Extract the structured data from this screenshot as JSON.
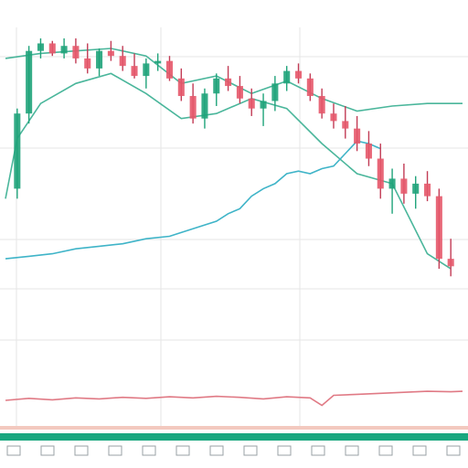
{
  "chart_data": {
    "type": "candlestick",
    "grid": true,
    "legend": "none",
    "colors": {
      "up": "#1fa37a",
      "down": "#e5586a",
      "wick": "#c23b55",
      "envelope": "#2aa98a",
      "line": "#3fb4c8",
      "oscillator": "#e07a85",
      "grid": "#e6e6e6",
      "axis_strip": "#19a77f"
    },
    "price_range": [
      0,
      100
    ],
    "oscillator_range": [
      0,
      100
    ],
    "candles": [
      {
        "x": 1,
        "o": 40,
        "h": 72,
        "l": 36,
        "c": 70
      },
      {
        "x": 2,
        "o": 70,
        "h": 97,
        "l": 66,
        "c": 95
      },
      {
        "x": 3,
        "o": 95,
        "h": 100,
        "l": 92,
        "c": 98
      },
      {
        "x": 4,
        "o": 98,
        "h": 99,
        "l": 93,
        "c": 94
      },
      {
        "x": 5,
        "o": 94,
        "h": 100,
        "l": 92,
        "c": 97
      },
      {
        "x": 6,
        "o": 97,
        "h": 100,
        "l": 90,
        "c": 92
      },
      {
        "x": 7,
        "o": 92,
        "h": 98,
        "l": 86,
        "c": 88
      },
      {
        "x": 8,
        "o": 88,
        "h": 96,
        "l": 85,
        "c": 95
      },
      {
        "x": 9,
        "o": 95,
        "h": 99,
        "l": 91,
        "c": 93
      },
      {
        "x": 10,
        "o": 93,
        "h": 97,
        "l": 87,
        "c": 89
      },
      {
        "x": 11,
        "o": 89,
        "h": 94,
        "l": 84,
        "c": 85
      },
      {
        "x": 12,
        "o": 85,
        "h": 92,
        "l": 80,
        "c": 90
      },
      {
        "x": 13,
        "o": 90,
        "h": 94,
        "l": 87,
        "c": 91
      },
      {
        "x": 14,
        "o": 91,
        "h": 93,
        "l": 83,
        "c": 84
      },
      {
        "x": 15,
        "o": 84,
        "h": 88,
        "l": 75,
        "c": 77
      },
      {
        "x": 16,
        "o": 77,
        "h": 82,
        "l": 66,
        "c": 68
      },
      {
        "x": 17,
        "o": 68,
        "h": 80,
        "l": 64,
        "c": 78
      },
      {
        "x": 18,
        "o": 78,
        "h": 86,
        "l": 73,
        "c": 84
      },
      {
        "x": 19,
        "o": 84,
        "h": 89,
        "l": 79,
        "c": 81
      },
      {
        "x": 20,
        "o": 81,
        "h": 85,
        "l": 74,
        "c": 76
      },
      {
        "x": 21,
        "o": 76,
        "h": 80,
        "l": 69,
        "c": 72
      },
      {
        "x": 22,
        "o": 72,
        "h": 78,
        "l": 65,
        "c": 75
      },
      {
        "x": 23,
        "o": 75,
        "h": 85,
        "l": 71,
        "c": 82
      },
      {
        "x": 24,
        "o": 82,
        "h": 89,
        "l": 79,
        "c": 87
      },
      {
        "x": 25,
        "o": 87,
        "h": 90,
        "l": 82,
        "c": 84
      },
      {
        "x": 26,
        "o": 84,
        "h": 86,
        "l": 75,
        "c": 77
      },
      {
        "x": 27,
        "o": 77,
        "h": 80,
        "l": 68,
        "c": 70
      },
      {
        "x": 28,
        "o": 70,
        "h": 74,
        "l": 64,
        "c": 67
      },
      {
        "x": 29,
        "o": 67,
        "h": 73,
        "l": 60,
        "c": 64
      },
      {
        "x": 30,
        "o": 64,
        "h": 69,
        "l": 55,
        "c": 58
      },
      {
        "x": 31,
        "o": 58,
        "h": 63,
        "l": 49,
        "c": 52
      },
      {
        "x": 32,
        "o": 52,
        "h": 58,
        "l": 36,
        "c": 40
      },
      {
        "x": 33,
        "o": 40,
        "h": 48,
        "l": 30,
        "c": 44
      },
      {
        "x": 34,
        "o": 44,
        "h": 50,
        "l": 34,
        "c": 38
      },
      {
        "x": 35,
        "o": 38,
        "h": 45,
        "l": 32,
        "c": 42
      },
      {
        "x": 36,
        "o": 42,
        "h": 47,
        "l": 35,
        "c": 37
      },
      {
        "x": 37,
        "o": 37,
        "h": 40,
        "l": 8,
        "c": 12
      },
      {
        "x": 38,
        "o": 12,
        "h": 20,
        "l": 5,
        "c": 9
      }
    ],
    "envelope_upper": [
      {
        "x": 0,
        "y": 92
      },
      {
        "x": 3,
        "y": 94
      },
      {
        "x": 6,
        "y": 95
      },
      {
        "x": 9,
        "y": 96
      },
      {
        "x": 12,
        "y": 93
      },
      {
        "x": 15,
        "y": 82
      },
      {
        "x": 18,
        "y": 85
      },
      {
        "x": 21,
        "y": 78
      },
      {
        "x": 24,
        "y": 83
      },
      {
        "x": 27,
        "y": 76
      },
      {
        "x": 30,
        "y": 71
      },
      {
        "x": 33,
        "y": 73
      },
      {
        "x": 36,
        "y": 74
      },
      {
        "x": 39,
        "y": 74
      }
    ],
    "envelope_lower": [
      {
        "x": 0,
        "y": 36
      },
      {
        "x": 1,
        "y": 60
      },
      {
        "x": 3,
        "y": 74
      },
      {
        "x": 6,
        "y": 82
      },
      {
        "x": 9,
        "y": 86
      },
      {
        "x": 12,
        "y": 78
      },
      {
        "x": 15,
        "y": 68
      },
      {
        "x": 18,
        "y": 70
      },
      {
        "x": 21,
        "y": 76
      },
      {
        "x": 24,
        "y": 72
      },
      {
        "x": 27,
        "y": 58
      },
      {
        "x": 30,
        "y": 46
      },
      {
        "x": 33,
        "y": 42
      },
      {
        "x": 36,
        "y": 14
      },
      {
        "x": 38,
        "y": 8
      }
    ],
    "line_series": [
      {
        "x": 0,
        "y": 12
      },
      {
        "x": 2,
        "y": 13
      },
      {
        "x": 4,
        "y": 14
      },
      {
        "x": 6,
        "y": 16
      },
      {
        "x": 8,
        "y": 17
      },
      {
        "x": 10,
        "y": 18
      },
      {
        "x": 12,
        "y": 20
      },
      {
        "x": 14,
        "y": 21
      },
      {
        "x": 16,
        "y": 24
      },
      {
        "x": 18,
        "y": 27
      },
      {
        "x": 19,
        "y": 30
      },
      {
        "x": 20,
        "y": 32
      },
      {
        "x": 21,
        "y": 37
      },
      {
        "x": 22,
        "y": 40
      },
      {
        "x": 23,
        "y": 42
      },
      {
        "x": 24,
        "y": 46
      },
      {
        "x": 25,
        "y": 47
      },
      {
        "x": 26,
        "y": 46
      },
      {
        "x": 27,
        "y": 48
      },
      {
        "x": 28,
        "y": 49
      },
      {
        "x": 29,
        "y": 54
      },
      {
        "x": 30,
        "y": 59
      },
      {
        "x": 31,
        "y": 58
      },
      {
        "x": 32,
        "y": 56
      }
    ],
    "oscillator": [
      {
        "x": 0,
        "y": 40
      },
      {
        "x": 2,
        "y": 44
      },
      {
        "x": 4,
        "y": 41
      },
      {
        "x": 6,
        "y": 45
      },
      {
        "x": 8,
        "y": 43
      },
      {
        "x": 10,
        "y": 46
      },
      {
        "x": 12,
        "y": 44
      },
      {
        "x": 14,
        "y": 47
      },
      {
        "x": 16,
        "y": 45
      },
      {
        "x": 18,
        "y": 48
      },
      {
        "x": 20,
        "y": 46
      },
      {
        "x": 22,
        "y": 43
      },
      {
        "x": 24,
        "y": 47
      },
      {
        "x": 26,
        "y": 45
      },
      {
        "x": 27,
        "y": 30
      },
      {
        "x": 28,
        "y": 50
      },
      {
        "x": 30,
        "y": 52
      },
      {
        "x": 32,
        "y": 54
      },
      {
        "x": 34,
        "y": 56
      },
      {
        "x": 36,
        "y": 58
      },
      {
        "x": 38,
        "y": 57
      },
      {
        "x": 39,
        "y": 58
      }
    ],
    "x_range": [
      0,
      39
    ]
  }
}
